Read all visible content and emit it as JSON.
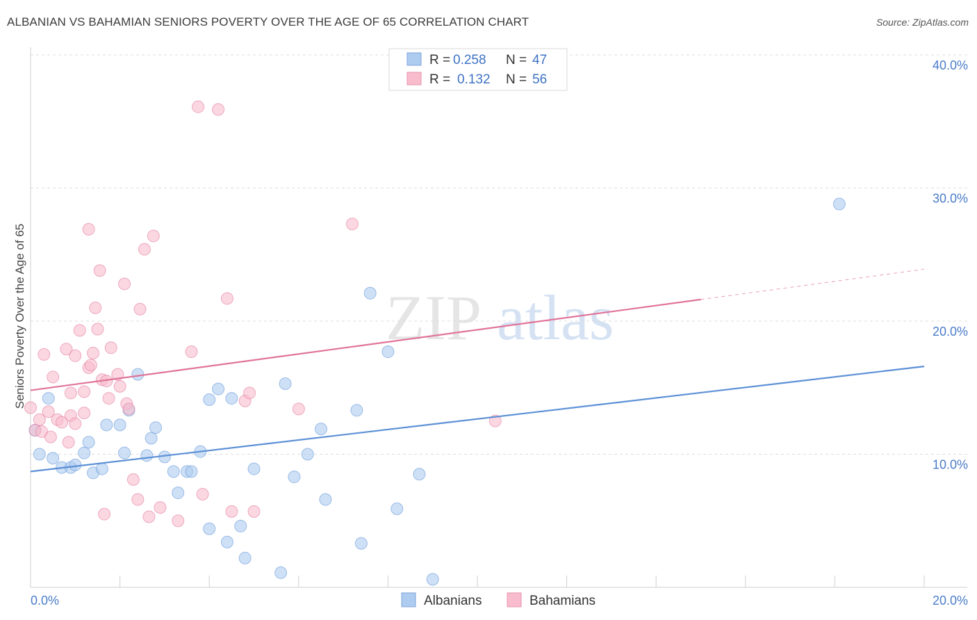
{
  "title": "ALBANIAN VS BAHAMIAN SENIORS POVERTY OVER THE AGE OF 65 CORRELATION CHART",
  "source": "Source: ZipAtlas.com",
  "watermark": {
    "zip": "ZIP",
    "atlas": "atlas"
  },
  "legend": [
    {
      "r_label": "R =",
      "r_value": "0.258",
      "n_label": "N =",
      "n_value": "47",
      "color": "#aecbf0"
    },
    {
      "r_label": "R =",
      "r_value": "0.132",
      "n_label": "N =",
      "n_value": "56",
      "color": "#f8bccd"
    }
  ],
  "bottom_legend": [
    {
      "label": "Albanians",
      "color": "#aecbf0"
    },
    {
      "label": "Bahamians",
      "color": "#f8bccd"
    }
  ],
  "chart_data": {
    "type": "scatter",
    "title": "ALBANIAN VS BAHAMIAN SENIORS POVERTY OVER THE AGE OF 65 CORRELATION CHART",
    "xlabel": "",
    "ylabel": "Seniors Poverty Over the Age of 65",
    "xlim": [
      0,
      20
    ],
    "ylim": [
      0,
      40
    ],
    "x_tick_labels": [
      "0.0%",
      "20.0%"
    ],
    "y_ticks": [
      10,
      20,
      30,
      40
    ],
    "y_tick_labels": [
      "10.0%",
      "20.0%",
      "30.0%",
      "40.0%"
    ],
    "grid": true,
    "legend_position": "top-center",
    "series": [
      {
        "name": "Albanians",
        "color": "#5b8fd6",
        "fill": "#aecbf0",
        "trend": {
          "x": [
            0,
            20
          ],
          "y": [
            8.7,
            16.6
          ],
          "dashed_from": null
        },
        "points": [
          [
            0.1,
            11.8
          ],
          [
            0.2,
            10.0
          ],
          [
            0.4,
            14.2
          ],
          [
            0.5,
            9.7
          ],
          [
            0.7,
            9.0
          ],
          [
            0.9,
            9.0
          ],
          [
            1.0,
            9.2
          ],
          [
            1.2,
            10.1
          ],
          [
            1.3,
            10.9
          ],
          [
            1.4,
            8.6
          ],
          [
            1.6,
            8.9
          ],
          [
            1.7,
            12.2
          ],
          [
            2.0,
            12.2
          ],
          [
            2.1,
            10.1
          ],
          [
            2.2,
            13.3
          ],
          [
            2.4,
            16.0
          ],
          [
            2.6,
            9.9
          ],
          [
            2.7,
            11.2
          ],
          [
            2.8,
            12.0
          ],
          [
            3.0,
            9.8
          ],
          [
            3.2,
            8.7
          ],
          [
            3.3,
            7.1
          ],
          [
            3.5,
            8.7
          ],
          [
            3.6,
            8.7
          ],
          [
            3.8,
            10.2
          ],
          [
            4.0,
            14.1
          ],
          [
            4.0,
            4.4
          ],
          [
            4.2,
            14.9
          ],
          [
            4.4,
            3.4
          ],
          [
            4.5,
            14.2
          ],
          [
            4.7,
            4.6
          ],
          [
            4.8,
            2.2
          ],
          [
            5.0,
            8.9
          ],
          [
            5.6,
            1.1
          ],
          [
            5.7,
            15.3
          ],
          [
            5.9,
            8.3
          ],
          [
            6.2,
            10.0
          ],
          [
            6.5,
            11.9
          ],
          [
            6.6,
            6.6
          ],
          [
            7.3,
            13.3
          ],
          [
            7.4,
            3.3
          ],
          [
            7.6,
            22.1
          ],
          [
            8.0,
            17.7
          ],
          [
            8.2,
            5.9
          ],
          [
            8.7,
            8.5
          ],
          [
            9.0,
            0.6
          ],
          [
            18.1,
            28.8
          ]
        ]
      },
      {
        "name": "Bahamians",
        "color": "#e07399",
        "fill": "#f8bccd",
        "trend": {
          "x": [
            0,
            20
          ],
          "y": [
            14.8,
            23.9
          ],
          "dashed_from": 15.0
        },
        "points": [
          [
            0.0,
            13.5
          ],
          [
            0.1,
            11.8
          ],
          [
            0.2,
            12.6
          ],
          [
            0.25,
            11.7
          ],
          [
            0.3,
            17.5
          ],
          [
            0.4,
            13.2
          ],
          [
            0.45,
            11.3
          ],
          [
            0.5,
            15.8
          ],
          [
            0.6,
            12.6
          ],
          [
            0.7,
            12.4
          ],
          [
            0.8,
            17.9
          ],
          [
            0.85,
            10.9
          ],
          [
            0.9,
            12.9
          ],
          [
            0.9,
            14.6
          ],
          [
            1.0,
            12.3
          ],
          [
            1.0,
            17.4
          ],
          [
            1.1,
            19.3
          ],
          [
            1.2,
            13.1
          ],
          [
            1.3,
            16.5
          ],
          [
            1.2,
            14.7
          ],
          [
            1.3,
            26.9
          ],
          [
            1.35,
            16.7
          ],
          [
            1.4,
            17.6
          ],
          [
            1.45,
            21.0
          ],
          [
            1.5,
            19.4
          ],
          [
            1.55,
            23.8
          ],
          [
            1.6,
            15.6
          ],
          [
            1.65,
            5.5
          ],
          [
            1.7,
            15.5
          ],
          [
            1.75,
            14.2
          ],
          [
            1.8,
            18.0
          ],
          [
            1.95,
            16.0
          ],
          [
            2.0,
            15.1
          ],
          [
            2.1,
            22.8
          ],
          [
            2.15,
            13.8
          ],
          [
            2.2,
            13.4
          ],
          [
            2.3,
            8.1
          ],
          [
            2.4,
            6.6
          ],
          [
            2.45,
            20.9
          ],
          [
            2.55,
            25.4
          ],
          [
            2.65,
            5.3
          ],
          [
            2.75,
            26.4
          ],
          [
            2.9,
            6.0
          ],
          [
            3.3,
            5.0
          ],
          [
            3.6,
            17.7
          ],
          [
            3.75,
            36.1
          ],
          [
            3.85,
            7.0
          ],
          [
            4.2,
            35.9
          ],
          [
            4.4,
            21.7
          ],
          [
            4.5,
            5.7
          ],
          [
            4.8,
            14.0
          ],
          [
            4.9,
            14.6
          ],
          [
            5.0,
            5.7
          ],
          [
            6.0,
            13.4
          ],
          [
            7.2,
            27.3
          ],
          [
            10.4,
            12.5
          ]
        ]
      }
    ]
  }
}
